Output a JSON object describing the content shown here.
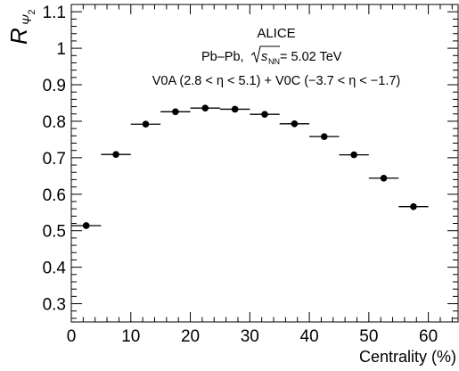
{
  "chart_data": {
    "type": "scatter",
    "xlabel": "Centrality (%)",
    "ylabel": {
      "main": "R",
      "sub": "Ψ",
      "subsub": "2"
    },
    "xlim": [
      0,
      65
    ],
    "ylim": [
      0.25,
      1.12
    ],
    "x_major_ticks": [
      0,
      10,
      20,
      30,
      40,
      50,
      60
    ],
    "y_major_ticks": [
      0.3,
      0.4,
      0.5,
      0.6,
      0.7,
      0.8,
      0.9,
      1.0,
      1.1
    ],
    "x_tick_labels": [
      "0",
      "10",
      "20",
      "30",
      "40",
      "50",
      "60"
    ],
    "y_tick_labels": [
      "0.3",
      "0.4",
      "0.5",
      "0.6",
      "0.7",
      "0.8",
      "0.9",
      "1",
      "1.1"
    ],
    "annotations": {
      "experiment": "ALICE",
      "system_prefix": "Pb–Pb, ",
      "sqrt_s_label": "s",
      "sqrt_s_sub": "NN",
      "system_suffix": " = 5.02 TeV",
      "detectors": "V0A (2.8 < η < 5.1) + V0C (−3.7 < η < −1.7)"
    },
    "points": [
      {
        "x": 2.5,
        "xerr": 2.5,
        "y": 0.514
      },
      {
        "x": 7.5,
        "xerr": 2.5,
        "y": 0.709
      },
      {
        "x": 12.5,
        "xerr": 2.5,
        "y": 0.792
      },
      {
        "x": 17.5,
        "xerr": 2.5,
        "y": 0.826
      },
      {
        "x": 22.5,
        "xerr": 2.5,
        "y": 0.836
      },
      {
        "x": 27.5,
        "xerr": 2.5,
        "y": 0.833
      },
      {
        "x": 32.5,
        "xerr": 2.5,
        "y": 0.819
      },
      {
        "x": 37.5,
        "xerr": 2.5,
        "y": 0.793
      },
      {
        "x": 42.5,
        "xerr": 2.5,
        "y": 0.758
      },
      {
        "x": 47.5,
        "xerr": 2.5,
        "y": 0.708
      },
      {
        "x": 52.5,
        "xerr": 2.5,
        "y": 0.644
      },
      {
        "x": 57.5,
        "xerr": 2.5,
        "y": 0.566
      }
    ],
    "marker_color": "#000000",
    "grid": false,
    "legend": "none"
  }
}
